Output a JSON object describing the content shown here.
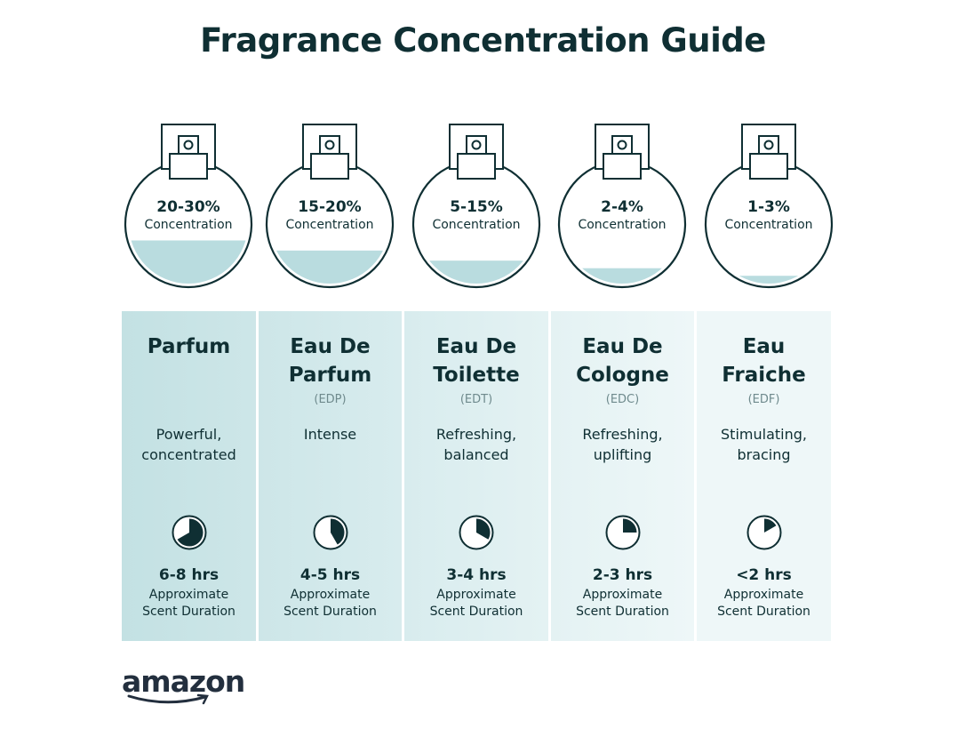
{
  "title": "Fragrance Concentration Guide",
  "colors": {
    "text": "#0f2f33",
    "liquid": "#b9dcdf",
    "columns": [
      "#c3e1e3",
      "#cde6e8",
      "#d8ecee",
      "#e4f2f3",
      "#eef7f8"
    ]
  },
  "items": [
    {
      "concentration": "20-30%",
      "concentration_label": "Concentration",
      "fill_level": 0.37,
      "name": "Parfum",
      "abbr": "",
      "description": "Powerful, concentrated",
      "duration": "6-8 hrs",
      "duration_label": "Approximate Scent Duration",
      "clock_fraction": 0.667
    },
    {
      "concentration": "15-20%",
      "concentration_label": "Concentration",
      "fill_level": 0.29,
      "name": "Eau De Parfum",
      "abbr": "(EDP)",
      "description": "Intense",
      "duration": "4-5 hrs",
      "duration_label": "Approximate Scent Duration",
      "clock_fraction": 0.417
    },
    {
      "concentration": "5-15%",
      "concentration_label": "Concentration",
      "fill_level": 0.21,
      "name": "Eau De Toilette",
      "abbr": "(EDT)",
      "description": "Refreshing, balanced",
      "duration": "3-4 hrs",
      "duration_label": "Approximate Scent Duration",
      "clock_fraction": 0.333
    },
    {
      "concentration": "2-4%",
      "concentration_label": "Concentration",
      "fill_level": 0.15,
      "name": "Eau De Cologne",
      "abbr": "(EDC)",
      "description": "Refreshing, uplifting",
      "duration": "2-3 hrs",
      "duration_label": "Approximate Scent Duration",
      "clock_fraction": 0.25
    },
    {
      "concentration": "1-3%",
      "concentration_label": "Concentration",
      "fill_level": 0.09,
      "name": "Eau Fraiche",
      "abbr": "(EDF)",
      "description": "Stimulating, bracing",
      "duration": "<2 hrs",
      "duration_label": "Approximate Scent Duration",
      "clock_fraction": 0.167
    }
  ],
  "logo": {
    "text": "amazon"
  }
}
